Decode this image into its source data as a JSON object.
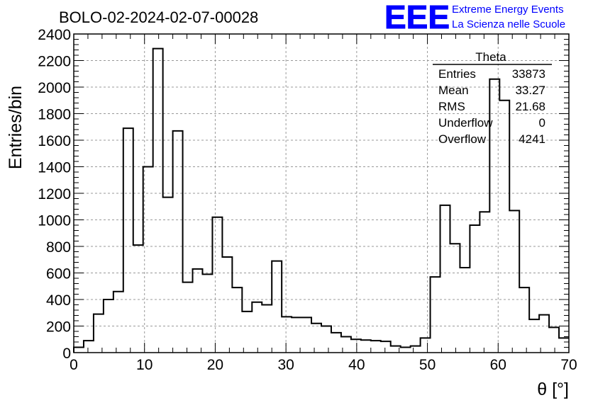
{
  "chart_data": {
    "type": "histogram",
    "title": "BOLO-02-2024-02-07-00028",
    "xlabel": "θ [°]",
    "ylabel": "Entries/bin",
    "xlim": [
      0,
      70
    ],
    "ylim": [
      0,
      2400
    ],
    "x_ticks": [
      0,
      10,
      20,
      30,
      40,
      50,
      60,
      70
    ],
    "y_ticks": [
      0,
      200,
      400,
      600,
      800,
      1000,
      1200,
      1400,
      1600,
      1800,
      2000,
      2200,
      2400
    ],
    "grid": true,
    "bin_width": 1.4,
    "bin_edges_start": 0,
    "values": [
      40,
      90,
      290,
      400,
      460,
      1690,
      810,
      1400,
      2290,
      1170,
      1670,
      530,
      630,
      590,
      1020,
      720,
      490,
      310,
      380,
      360,
      690,
      270,
      265,
      265,
      220,
      200,
      150,
      120,
      100,
      95,
      90,
      85,
      50,
      40,
      50,
      110,
      570,
      1110,
      820,
      640,
      960,
      1060,
      2060,
      1900,
      1070,
      490,
      250,
      285,
      190,
      110
    ],
    "stats_box": {
      "name": "Theta",
      "rows": [
        {
          "label": "Entries",
          "value": "33873"
        },
        {
          "label": "Mean",
          "value": "33.27"
        },
        {
          "label": "RMS",
          "value": "21.68"
        },
        {
          "label": "Underflow",
          "value": "0"
        },
        {
          "label": "Overflow",
          "value": "4241"
        }
      ]
    }
  },
  "logo": {
    "mark": "EEE",
    "line1": "Extreme Energy Events",
    "line2": "La Scienza nelle Scuole",
    "color": "#0000ff"
  }
}
